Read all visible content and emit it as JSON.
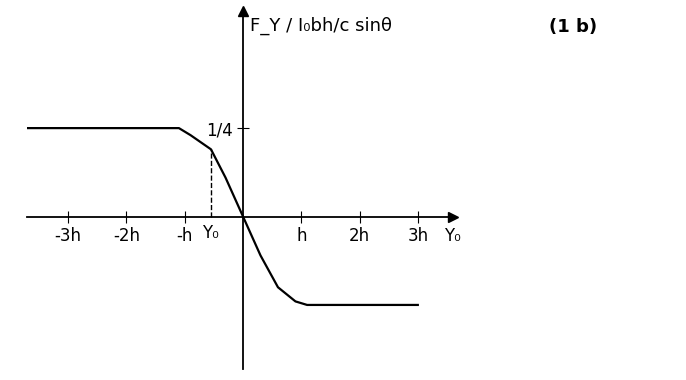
{
  "chart_data": {
    "type": "line",
    "title": "(1 b)",
    "x_label": "Y₀",
    "y_label": "F_Y / I₀bh/c sinθ",
    "x": [
      -3.7,
      -3,
      -2,
      -1.1,
      -0.9,
      -0.55,
      -0.3,
      0,
      0.3,
      0.6,
      0.9,
      1.1,
      2,
      3
    ],
    "values": [
      0.25,
      0.25,
      0.25,
      0.25,
      0.23,
      0.19,
      0.11,
      0,
      -0.11,
      -0.2,
      -0.24,
      -0.25,
      -0.25,
      -0.25
    ],
    "color": "#000000",
    "xlim": [
      -3.7,
      3.6
    ],
    "ylim": [
      -0.43,
      0.58
    ],
    "xticks": [
      {
        "value": -3,
        "label": "-3h"
      },
      {
        "value": -2,
        "label": "-2h"
      },
      {
        "value": -1,
        "label": "-h"
      },
      {
        "value": 1,
        "label": "h"
      },
      {
        "value": 2,
        "label": "2h"
      },
      {
        "value": 3,
        "label": "3h"
      }
    ],
    "yticks": [
      {
        "value": 0.25,
        "label": "1/4"
      }
    ],
    "annotations": [
      {
        "text": "Y₀",
        "x": -0.55
      }
    ],
    "grid": false
  }
}
